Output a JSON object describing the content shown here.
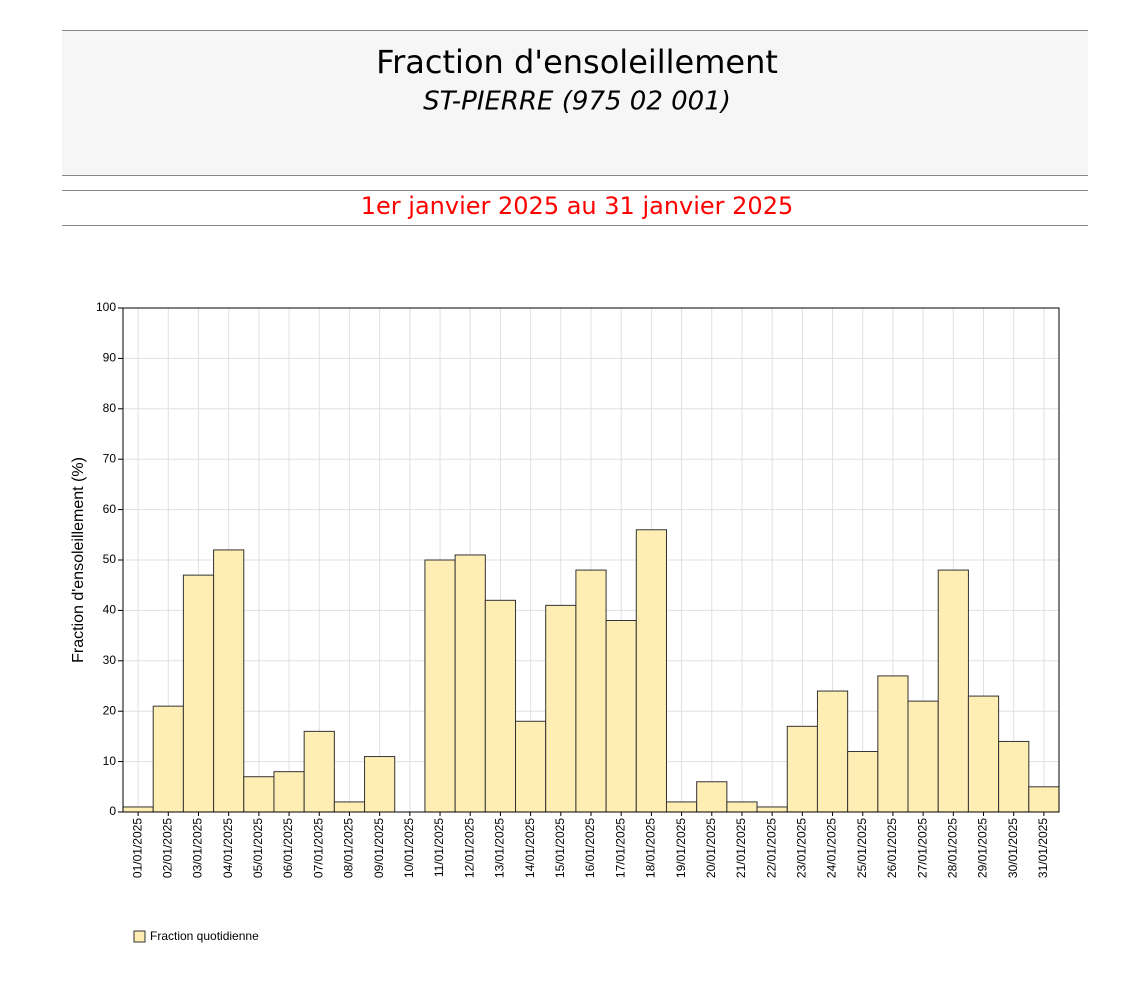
{
  "header": {
    "title": "Fraction d'ensoleillement",
    "subtitle": "ST-PIERRE (975 02 001)",
    "period": "1er janvier 2025 au 31 janvier 2025"
  },
  "chart_data": {
    "type": "bar",
    "y_label": "Fraction d'ensoleillement (%)",
    "categories": [
      "01/01/2025",
      "02/01/2025",
      "03/01/2025",
      "04/01/2025",
      "05/01/2025",
      "06/01/2025",
      "07/01/2025",
      "08/01/2025",
      "09/01/2025",
      "10/01/2025",
      "11/01/2025",
      "12/01/2025",
      "13/01/2025",
      "14/01/2025",
      "15/01/2025",
      "16/01/2025",
      "17/01/2025",
      "18/01/2025",
      "19/01/2025",
      "20/01/2025",
      "21/01/2025",
      "22/01/2025",
      "23/01/2025",
      "24/01/2025",
      "25/01/2025",
      "26/01/2025",
      "27/01/2025",
      "28/01/2025",
      "29/01/2025",
      "30/01/2025",
      "31/01/2025"
    ],
    "series": [
      {
        "name": "Fraction quotidienne",
        "color": "#ffeeb4",
        "values": [
          1,
          21,
          47,
          52,
          7,
          8,
          16,
          2,
          11,
          0,
          50,
          51,
          42,
          18,
          41,
          48,
          38,
          56,
          2,
          6,
          2,
          1,
          17,
          24,
          12,
          27,
          22,
          48,
          23,
          14,
          5
        ]
      }
    ],
    "ylim": [
      0,
      100
    ],
    "yticks": [
      0,
      10,
      20,
      30,
      40,
      50,
      60,
      70,
      80,
      90,
      100
    ],
    "grid": true
  }
}
